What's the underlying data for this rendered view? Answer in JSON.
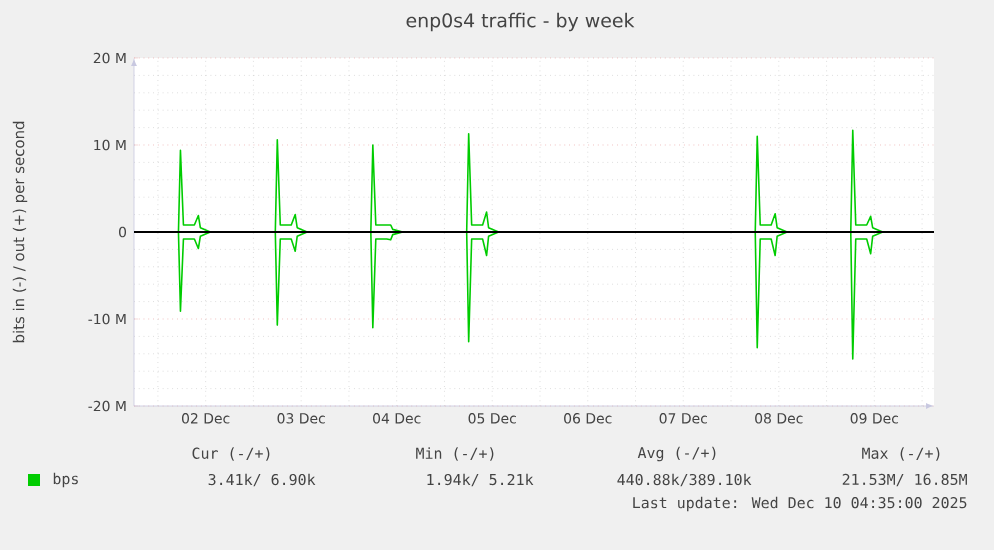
{
  "chart_data": {
    "type": "line",
    "title": "enp0s4 traffic - by week",
    "ylabel": "bits in (-) / out (+) per second",
    "xlim": [
      "2025-12-01T18:00",
      "2025-12-10T03:00"
    ],
    "xticks": [
      {
        "value": "2025-12-02T00:00",
        "label": null
      },
      {
        "value": "2025-12-03T00:00",
        "label": null
      },
      {
        "value": "2025-12-04T00:00",
        "label": null
      },
      {
        "value": "2025-12-05T00:00",
        "label": null
      },
      {
        "value": "2025-12-06T00:00",
        "label": null
      },
      {
        "value": "2025-12-07T00:00",
        "label": null
      },
      {
        "value": "2025-12-08T00:00",
        "label": null
      },
      {
        "value": "2025-12-09T00:00",
        "label": null
      },
      {
        "value": "2025-12-10T00:00",
        "label": null
      },
      {
        "value": "2025-12-02T12:00",
        "label": "02 Dec"
      },
      {
        "value": "2025-12-03T12:00",
        "label": "03 Dec"
      },
      {
        "value": "2025-12-04T12:00",
        "label": "04 Dec"
      },
      {
        "value": "2025-12-05T12:00",
        "label": "05 Dec"
      },
      {
        "value": "2025-12-06T12:00",
        "label": "06 Dec"
      },
      {
        "value": "2025-12-07T12:00",
        "label": "07 Dec"
      },
      {
        "value": "2025-12-08T12:00",
        "label": "08 Dec"
      },
      {
        "value": "2025-12-09T12:00",
        "label": "09 Dec"
      }
    ],
    "ylim": [
      -20,
      20
    ],
    "yticks": [
      {
        "value": -20,
        "label": "-20 M"
      },
      {
        "value": -10,
        "label": "-10 M"
      },
      0,
      {
        "value": 10,
        "label": "10 M"
      },
      {
        "value": 20,
        "label": "20 M"
      }
    ],
    "grid": true,
    "legend": "bottom",
    "x": [
      "2025-12-01T18:00",
      "2025-12-02T05:10",
      "2025-12-02T05:40",
      "2025-12-02T06:25",
      "2025-12-02T09:10",
      "2025-12-02T10:10",
      "2025-12-02T10:40",
      "2025-12-02T13:10",
      "2025-12-03T05:30",
      "2025-12-03T06:00",
      "2025-12-03T06:45",
      "2025-12-03T09:30",
      "2025-12-03T10:30",
      "2025-12-03T11:00",
      "2025-12-03T13:30",
      "2025-12-04T05:30",
      "2025-12-04T06:00",
      "2025-12-04T06:45",
      "2025-12-04T09:30",
      "2025-12-04T10:30",
      "2025-12-04T11:00",
      "2025-12-04T13:30",
      "2025-12-05T05:35",
      "2025-12-05T06:05",
      "2025-12-05T06:50",
      "2025-12-05T09:35",
      "2025-12-05T10:35",
      "2025-12-05T11:05",
      "2025-12-05T13:35",
      "2025-12-08T06:05",
      "2025-12-08T06:35",
      "2025-12-08T07:20",
      "2025-12-08T10:05",
      "2025-12-08T11:05",
      "2025-12-08T11:35",
      "2025-12-08T14:05",
      "2025-12-09T06:05",
      "2025-12-09T06:35",
      "2025-12-09T07:20",
      "2025-12-09T10:05",
      "2025-12-09T11:05",
      "2025-12-09T11:35",
      "2025-12-09T14:05",
      "2025-12-10T03:00"
    ],
    "series": [
      {
        "name": "bps",
        "color": "#00cc00",
        "values": [
          0,
          0,
          9.4,
          0.8,
          0.8,
          1.9,
          0.5,
          0,
          0,
          10.6,
          0.8,
          0.8,
          2.0,
          0.5,
          0,
          0,
          10.0,
          0.8,
          0.8,
          0.8,
          0.3,
          0,
          0,
          11.3,
          0.8,
          0.8,
          2.3,
          0.5,
          0,
          0,
          11.0,
          0.8,
          0.8,
          2.1,
          0.5,
          0,
          0,
          11.7,
          0.8,
          0.8,
          1.8,
          0.5,
          0,
          0
        ]
      },
      {
        "color": "#00cc00",
        "values": [
          0,
          0,
          -9.1,
          -0.8,
          -0.8,
          -1.9,
          -0.5,
          0,
          0,
          -10.7,
          -0.8,
          -0.8,
          -2.2,
          -0.5,
          0,
          0,
          -11.0,
          -0.8,
          -0.8,
          -0.9,
          -0.3,
          0,
          0,
          -12.6,
          -0.8,
          -0.8,
          -2.7,
          -0.5,
          0,
          0,
          -13.3,
          -0.8,
          -0.8,
          -2.7,
          -0.5,
          0,
          0,
          -14.6,
          -0.8,
          -0.8,
          -2.5,
          -0.5,
          0,
          0
        ]
      }
    ],
    "ref_lines": [
      {
        "axis": "y",
        "value": 0,
        "color": "#000000"
      }
    ],
    "annotations": [
      "Cur (-/+)",
      "Min (-/+)",
      "Avg (-/+)",
      "Max (-/+)",
      "3.41k/ 6.90k",
      "1.94k/ 5.21k",
      "440.88k/389.10k",
      "21.53M/ 16.85M",
      "Last update: Wed Dec 10 04:35:00 2025"
    ]
  }
}
